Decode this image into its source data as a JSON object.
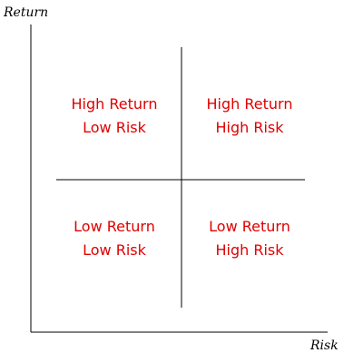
{
  "colors": {
    "background": "#ffffff",
    "lines": "#000000",
    "quadrant_text": "#e00000"
  },
  "axes": {
    "y_label": "Return",
    "x_label": "Risk"
  },
  "quadrants": {
    "top_left": {
      "line1": "High Return",
      "line2": "Low Risk"
    },
    "top_right": {
      "line1": "High Return",
      "line2": "High Risk"
    },
    "bottom_left": {
      "line1": "Low Return",
      "line2": "Low Risk"
    },
    "bottom_right": {
      "line1": "Low Return",
      "line2": "High Risk"
    }
  }
}
